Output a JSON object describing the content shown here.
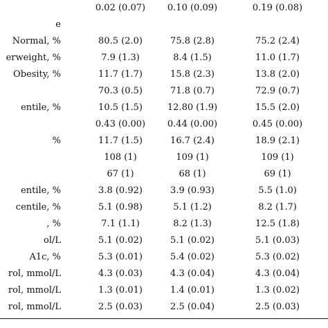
{
  "table": {
    "rows": [
      {
        "label": "",
        "c1": "0.02 (0.07)",
        "c2": "0.10 (0.09)",
        "c3": "0.19 (0.08)"
      },
      {
        "label": "e",
        "c1": "",
        "c2": "",
        "c3": ""
      },
      {
        "label": "Normal, %",
        "c1": "80.5 (2.0)",
        "c2": "75.8 (2.8)",
        "c3": "75.2 (2.4)"
      },
      {
        "label": "erweight, %",
        "c1": "7.9 (1.3)",
        "c2": "8.4 (1.5)",
        "c3": "11.0 (1.7)"
      },
      {
        "label": "Obesity, %",
        "c1": "11.7 (1.7)",
        "c2": "15.8 (2.3)",
        "c3": "13.8 (2.0)"
      },
      {
        "label": "",
        "c1": "70.3 (0.5)",
        "c2": "71.8 (0.7)",
        "c3": "72.9 (0.7)"
      },
      {
        "label": "entile, %",
        "c1": "10.5 (1.5)",
        "c2": "12.80 (1.9)",
        "c3": "15.5 (2.0)"
      },
      {
        "label": "",
        "c1": "0.43 (0.00)",
        "c2": "0.44 (0.00)",
        "c3": "0.45 (0.00)"
      },
      {
        "label": "%",
        "c1": "11.7 (1.5)",
        "c2": "16.7 (2.4)",
        "c3": "18.9 (2.1)"
      },
      {
        "label": "",
        "c1": "108 (1)",
        "c2": "109 (1)",
        "c3": "109 (1)"
      },
      {
        "label": "",
        "c1": "67 (1)",
        "c2": "68 (1)",
        "c3": "69 (1)"
      },
      {
        "label": "entile, %",
        "c1": "3.8 (0.92)",
        "c2": "3.9 (0.93)",
        "c3": "5.5 (1.0)"
      },
      {
        "label": "centile, %",
        "c1": "5.1 (0.98)",
        "c2": "5.1 (1.2)",
        "c3": "8.2 (1.7)"
      },
      {
        "label": ", %",
        "c1": "7.1 (1.1)",
        "c2": "8.2 (1.3)",
        "c3": "12.5 (1.8)"
      },
      {
        "label": "ol/L",
        "c1": "5.1 (0.02)",
        "c2": "5.1 (0.02)",
        "c3": "5.1 (0.03)"
      },
      {
        "label": "A1c, %",
        "c1": "5.3 (0.01)",
        "c2": "5.4 (0.02)",
        "c3": "5.3 (0.02)"
      },
      {
        "label": "rol, mmol/L",
        "c1": "4.3 (0.03)",
        "c2": "4.3 (0.04)",
        "c3": "4.3 (0.04)"
      },
      {
        "label": "rol, mmol/L",
        "c1": "1.3 (0.01)",
        "c2": "1.4 (0.01)",
        "c3": "1.3 (0.02)"
      },
      {
        "label": "rol, mmol/L",
        "c1": "2.5 (0.03)",
        "c2": "2.5 (0.04)",
        "c3": "2.5 (0.03)"
      }
    ]
  }
}
